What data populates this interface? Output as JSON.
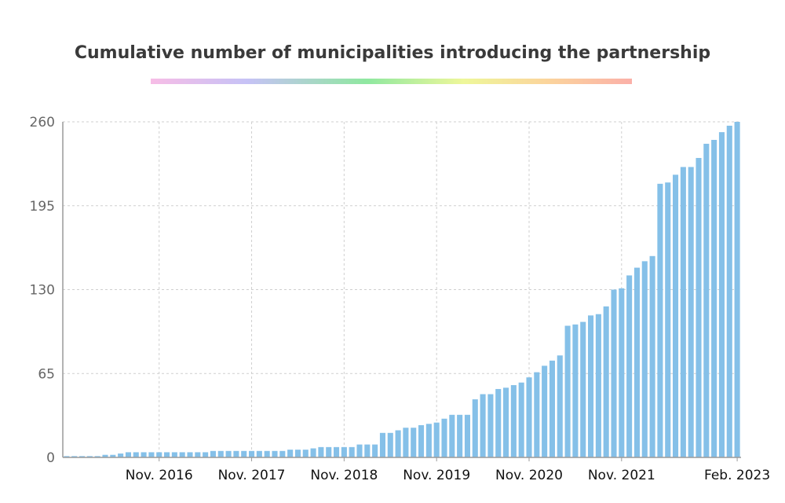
{
  "title": "Cumulative number of municipalities introducing the partnership",
  "colors": {
    "bar": "#85c0e8",
    "grid": "#cfcfcf",
    "axis": "#9a9a9a",
    "ytick": "#666666",
    "xtick": "#111111",
    "title": "#3a3a3a"
  },
  "chart_data": {
    "type": "bar",
    "title": "Cumulative number of municipalities introducing the partnership",
    "xlabel": "",
    "ylabel": "",
    "ylim": [
      0,
      260
    ],
    "yticks": [
      "0",
      "65",
      "130",
      "195",
      "260"
    ],
    "xticks": [
      {
        "label": "Nov. 2016",
        "index": 12
      },
      {
        "label": "Nov. 2017",
        "index": 24
      },
      {
        "label": "Nov. 2018",
        "index": 36
      },
      {
        "label": "Nov. 2019",
        "index": 48
      },
      {
        "label": "Nov. 2020",
        "index": 60
      },
      {
        "label": "Nov. 2021",
        "index": 72
      },
      {
        "label": "Feb. 2023",
        "index": 87
      }
    ],
    "grid": true,
    "legend": "none",
    "categories": [
      "Nov. 2015",
      "Dec. 2015",
      "Jan. 2016",
      "Feb. 2016",
      "Mar. 2016",
      "Apr. 2016",
      "May 2016",
      "Jun. 2016",
      "Jul. 2016",
      "Aug. 2016",
      "Sep. 2016",
      "Oct. 2016",
      "Nov. 2016",
      "Dec. 2016",
      "Jan. 2017",
      "Feb. 2017",
      "Mar. 2017",
      "Apr. 2017",
      "May 2017",
      "Jun. 2017",
      "Jul. 2017",
      "Aug. 2017",
      "Sep. 2017",
      "Oct. 2017",
      "Nov. 2017",
      "Dec. 2017",
      "Jan. 2018",
      "Feb. 2018",
      "Mar. 2018",
      "Apr. 2018",
      "May 2018",
      "Jun. 2018",
      "Jul. 2018",
      "Aug. 2018",
      "Sep. 2018",
      "Oct. 2018",
      "Nov. 2018",
      "Dec. 2018",
      "Jan. 2019",
      "Feb. 2019",
      "Mar. 2019",
      "Apr. 2019",
      "May 2019",
      "Jun. 2019",
      "Jul. 2019",
      "Aug. 2019",
      "Sep. 2019",
      "Oct. 2019",
      "Nov. 2019",
      "Dec. 2019",
      "Jan. 2020",
      "Feb. 2020",
      "Mar. 2020",
      "Apr. 2020",
      "May 2020",
      "Jun. 2020",
      "Jul. 2020",
      "Aug. 2020",
      "Sep. 2020",
      "Oct. 2020",
      "Nov. 2020",
      "Dec. 2020",
      "Jan. 2021",
      "Feb. 2021",
      "Mar. 2021",
      "Apr. 2021",
      "May 2021",
      "Jun. 2021",
      "Jul. 2021",
      "Aug. 2021",
      "Sep. 2021",
      "Oct. 2021",
      "Nov. 2021",
      "Dec. 2021",
      "Jan. 2022",
      "Feb. 2022",
      "Mar. 2022",
      "Apr. 2022",
      "May 2022",
      "Jun. 2022",
      "Jul. 2022",
      "Aug. 2022",
      "Sep. 2022",
      "Oct. 2022",
      "Nov. 2022",
      "Dec. 2022",
      "Jan. 2023",
      "Feb. 2023"
    ],
    "values": [
      1,
      1,
      1,
      1,
      1,
      2,
      2,
      3,
      4,
      4,
      4,
      4,
      4,
      4,
      4,
      4,
      4,
      4,
      4,
      5,
      5,
      5,
      5,
      5,
      5,
      5,
      5,
      5,
      5,
      6,
      6,
      6,
      7,
      8,
      8,
      8,
      8,
      8,
      10,
      10,
      10,
      19,
      19,
      21,
      23,
      23,
      25,
      26,
      27,
      30,
      33,
      33,
      33,
      45,
      49,
      49,
      53,
      54,
      56,
      58,
      62,
      66,
      71,
      75,
      79,
      102,
      103,
      105,
      110,
      111,
      117,
      130,
      131,
      141,
      147,
      152,
      156,
      212,
      213,
      219,
      225,
      225,
      232,
      243,
      246,
      252,
      257,
      260
    ]
  }
}
